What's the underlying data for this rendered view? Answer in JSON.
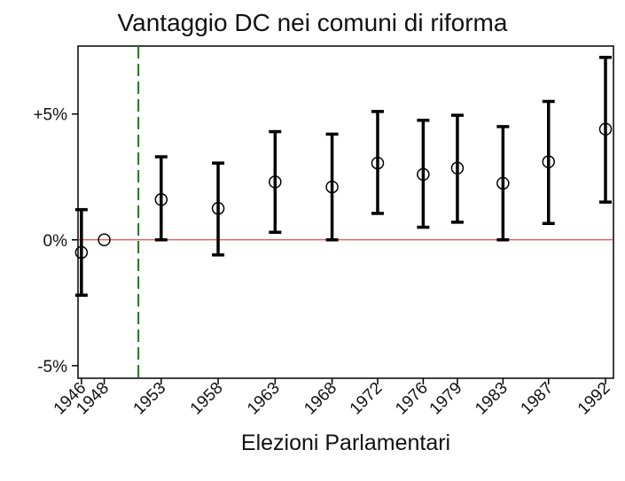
{
  "chart_data": {
    "type": "scatter",
    "title": "Vantaggio DC nei comuni di riforma",
    "xlabel": "Elezioni Parlamentari",
    "ylabel": "",
    "ylim": [
      -5.5,
      7.7
    ],
    "xlim": [
      1945.7,
      1992.7
    ],
    "y_ticks": [
      {
        "value": 5,
        "label": "+5%"
      },
      {
        "value": 0,
        "label": "0%"
      },
      {
        "value": -5,
        "label": "-5%"
      }
    ],
    "x_ticks": [
      {
        "value": 1946,
        "label": "1946"
      },
      {
        "value": 1948,
        "label": "1948"
      },
      {
        "value": 1953,
        "label": "1953"
      },
      {
        "value": 1958,
        "label": "1958"
      },
      {
        "value": 1963,
        "label": "1963"
      },
      {
        "value": 1968,
        "label": "1968"
      },
      {
        "value": 1972,
        "label": "1972"
      },
      {
        "value": 1976,
        "label": "1976"
      },
      {
        "value": 1979,
        "label": "1979"
      },
      {
        "value": 1983,
        "label": "1983"
      },
      {
        "value": 1987,
        "label": "1987"
      },
      {
        "value": 1992,
        "label": "1992"
      }
    ],
    "points": [
      {
        "x": 1946,
        "y": -0.5,
        "lo": -2.2,
        "hi": 1.2
      },
      {
        "x": 1948,
        "y": 0.0,
        "lo": null,
        "hi": null
      },
      {
        "x": 1953,
        "y": 1.6,
        "lo": 0.0,
        "hi": 3.3
      },
      {
        "x": 1958,
        "y": 1.25,
        "lo": -0.6,
        "hi": 3.05
      },
      {
        "x": 1963,
        "y": 2.3,
        "lo": 0.3,
        "hi": 4.3
      },
      {
        "x": 1968,
        "y": 2.1,
        "lo": 0.0,
        "hi": 4.2
      },
      {
        "x": 1972,
        "y": 3.05,
        "lo": 1.05,
        "hi": 5.1
      },
      {
        "x": 1976,
        "y": 2.6,
        "lo": 0.5,
        "hi": 4.75
      },
      {
        "x": 1979,
        "y": 2.85,
        "lo": 0.7,
        "hi": 4.95
      },
      {
        "x": 1983,
        "y": 2.25,
        "lo": 0.0,
        "hi": 4.5
      },
      {
        "x": 1987,
        "y": 3.1,
        "lo": 0.65,
        "hi": 5.5
      },
      {
        "x": 1992,
        "y": 4.4,
        "lo": 1.5,
        "hi": 7.25
      }
    ],
    "reference_line": {
      "y": 0,
      "color": "#dd2222"
    },
    "reform_marker": {
      "x": 1951,
      "color": "#1a7a1a",
      "style": "dashed"
    },
    "grid": false,
    "legend": "none"
  }
}
